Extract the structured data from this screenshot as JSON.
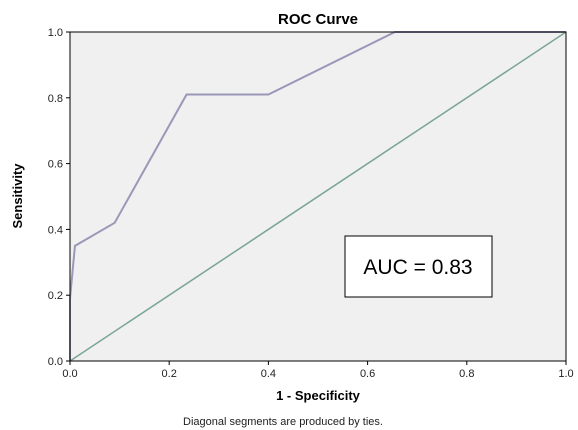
{
  "chart_data": {
    "type": "line",
    "title": "ROC Curve",
    "xlabel": "1 - Specificity",
    "ylabel": "Sensitivity",
    "xlim": [
      0.0,
      1.0
    ],
    "ylim": [
      0.0,
      1.0
    ],
    "xticks": [
      "0.0",
      "0.2",
      "0.4",
      "0.6",
      "0.8",
      "1.0"
    ],
    "yticks": [
      "0.0",
      "0.2",
      "0.4",
      "0.6",
      "0.8",
      "1.0"
    ],
    "grid": false,
    "plot_background": "#f0f0f0",
    "series": [
      {
        "color": "#9a97b7",
        "points": [
          [
            0.0,
            0.0
          ],
          [
            0.0,
            0.19
          ],
          [
            0.01,
            0.35
          ],
          [
            0.09,
            0.42
          ],
          [
            0.235,
            0.81
          ],
          [
            0.4,
            0.81
          ],
          [
            0.655,
            1.0
          ],
          [
            1.0,
            1.0
          ]
        ]
      },
      {
        "color": "#7aa594",
        "points": [
          [
            0.0,
            0.0
          ],
          [
            1.0,
            1.0
          ]
        ]
      }
    ],
    "annotation": "AUC = 0.83",
    "footnote": "Diagonal segments are produced by ties."
  }
}
